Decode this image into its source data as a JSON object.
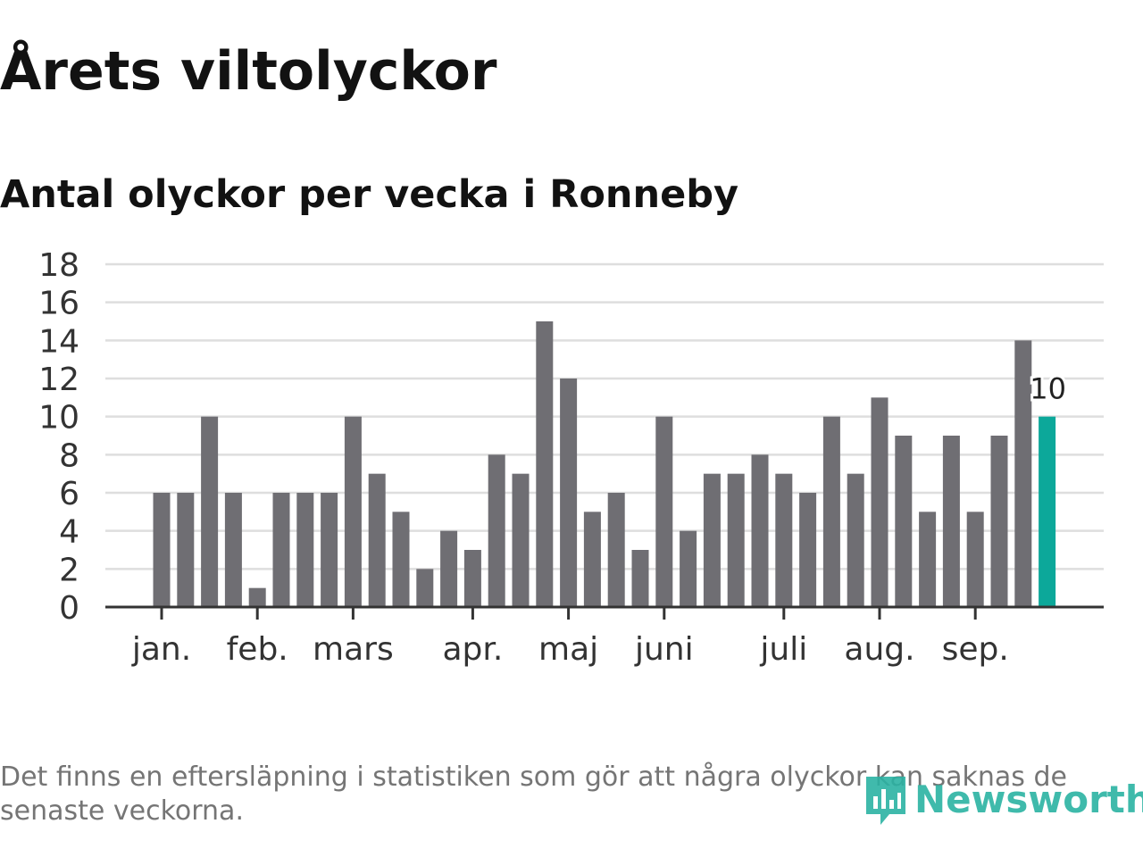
{
  "title": "Årets viltolyckor",
  "subtitle": "Antal olyckor per vecka i Ronneby",
  "footnote": "Det finns en eftersläpning i statistiken som gör att några olyckor kan saknas de senaste veckorna.",
  "logo": {
    "text": "Newsworthy",
    "icon": "newsworthy-logo-icon",
    "color": "#2bb3a3"
  },
  "colors": {
    "bar": "#6f6e73",
    "highlight": "#0ca89a",
    "grid": "#dedede",
    "axis": "#333333"
  },
  "chart_data": {
    "type": "bar",
    "title": "",
    "xlabel": "",
    "ylabel": "",
    "ylim": [
      0,
      18
    ],
    "yticks": [
      "0",
      "2",
      "4",
      "6",
      "8",
      "10",
      "12",
      "14",
      "16",
      "18"
    ],
    "grid": true,
    "values": [
      6,
      6,
      10,
      6,
      1,
      6,
      6,
      6,
      10,
      7,
      5,
      2,
      4,
      3,
      8,
      7,
      15,
      12,
      5,
      6,
      3,
      10,
      4,
      7,
      7,
      8,
      7,
      6,
      10,
      7,
      11,
      9,
      5,
      9,
      5,
      9,
      14,
      10
    ],
    "highlight_index": 37,
    "highlight_label": "10",
    "month_labels": [
      {
        "label": "jan.",
        "week": 1
      },
      {
        "label": "feb.",
        "week": 5
      },
      {
        "label": "mars",
        "week": 9
      },
      {
        "label": "apr.",
        "week": 14
      },
      {
        "label": "maj",
        "week": 18
      },
      {
        "label": "juni",
        "week": 22
      },
      {
        "label": "juli",
        "week": 27
      },
      {
        "label": "aug.",
        "week": 31
      },
      {
        "label": "sep.",
        "week": 35
      }
    ]
  }
}
